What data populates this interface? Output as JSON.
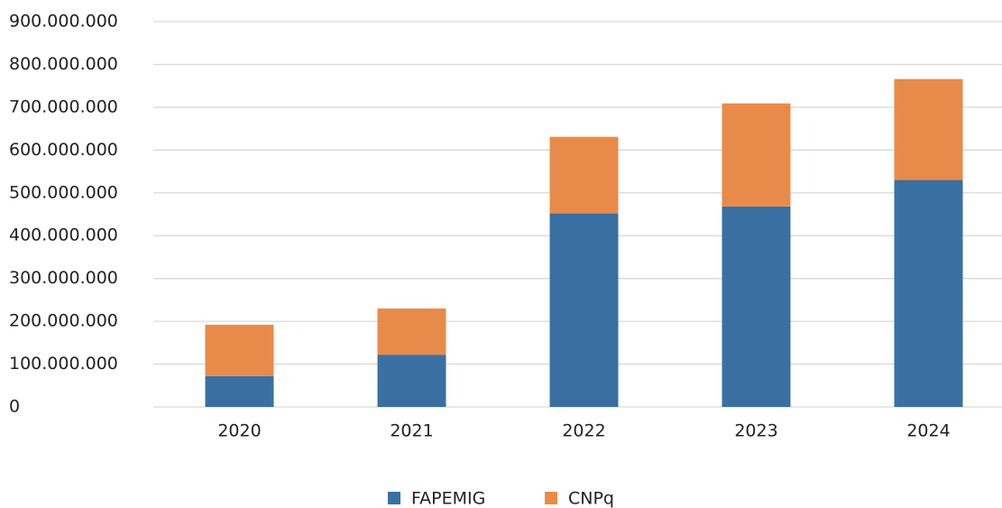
{
  "chart_data": {
    "type": "stacked_bar",
    "categories": [
      "2020",
      "2021",
      "2022",
      "2023",
      "2024"
    ],
    "series": [
      {
        "name": "FAPEMIG",
        "color": "#3a70a1",
        "values": [
          72000000,
          122000000,
          452000000,
          468000000,
          530000000
        ]
      },
      {
        "name": "CNPq",
        "color": "#e88b4a",
        "values": [
          120000000,
          108000000,
          179000000,
          241000000,
          236000000
        ]
      }
    ],
    "ylim": [
      0,
      900000000
    ],
    "yticks": [
      0,
      {
        "value": 100000000,
        "label": "100.000.000"
      },
      {
        "value": 200000000,
        "label": "200.000.000"
      },
      {
        "value": 300000000,
        "label": "300.000.000"
      },
      {
        "value": 400000000,
        "label": "400.000.000"
      },
      {
        "value": 500000000,
        "label": "500.000.000"
      },
      {
        "value": 600000000,
        "label": "600.000.000"
      },
      {
        "value": 700000000,
        "label": "700.000.000"
      },
      {
        "value": 800000000,
        "label": "800.000.000"
      },
      {
        "value": 900000000,
        "label": "900.000.000"
      }
    ],
    "grid": true,
    "legend": "bottom"
  }
}
